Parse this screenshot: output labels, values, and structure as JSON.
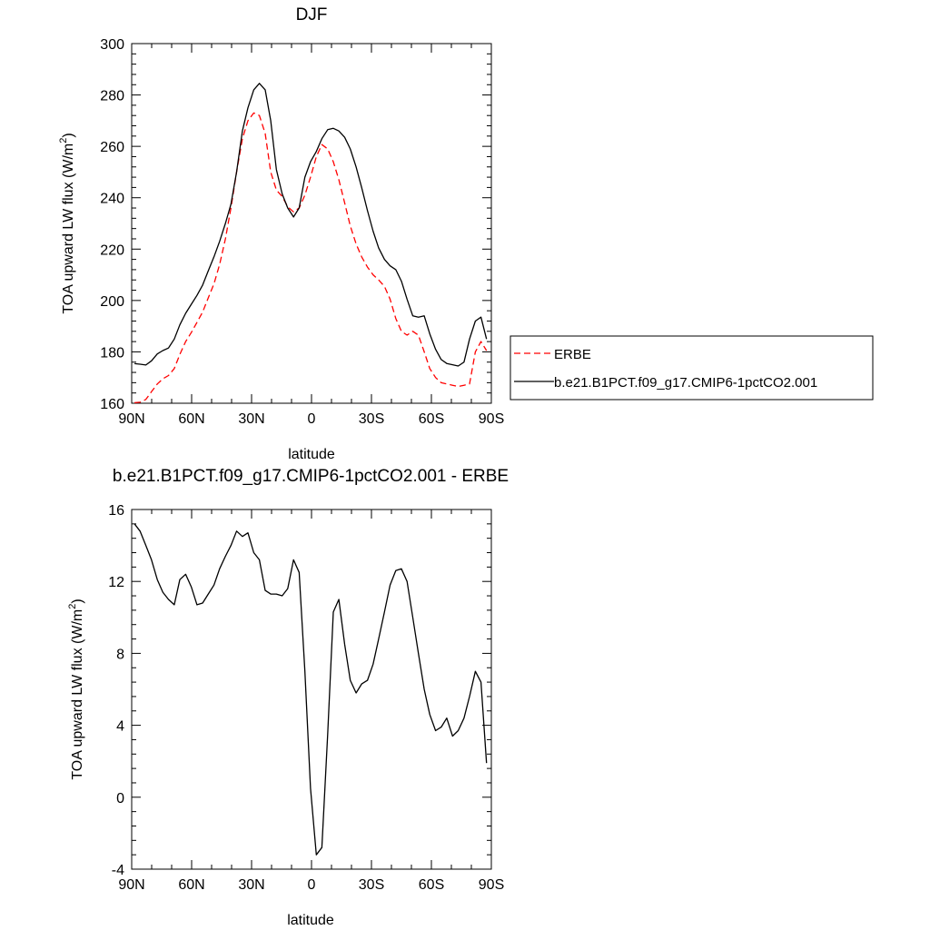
{
  "chart_data": [
    {
      "type": "line",
      "title": "DJF",
      "xlabel": "latitude",
      "ylabel": "TOA upward LW flux (W/m",
      "ylabel_sup": "2",
      "ylabel_end": ")",
      "xlim": [
        90,
        -90
      ],
      "ylim": [
        160,
        300
      ],
      "x_ticks": [
        90,
        60,
        30,
        0,
        -30,
        -60,
        -90
      ],
      "x_tick_labels": [
        "90N",
        "60N",
        "30N",
        "0",
        "30S",
        "60S",
        "90S"
      ],
      "y_ticks": [
        160,
        180,
        200,
        220,
        240,
        260,
        280,
        300
      ],
      "y_tick_labels": [
        "160",
        "180",
        "200",
        "220",
        "240",
        "260",
        "280",
        "300"
      ],
      "legend_position": "right",
      "series": [
        {
          "name": "ERBE",
          "color": "#ff0000",
          "dash": "dashed",
          "x": [
            88.6,
            85.8,
            82.9,
            80.1,
            77.2,
            74.4,
            71.6,
            68.7,
            65.9,
            63.0,
            60.2,
            57.3,
            54.5,
            51.7,
            48.8,
            46.0,
            43.1,
            40.3,
            37.5,
            34.6,
            31.8,
            28.9,
            26.1,
            23.2,
            20.4,
            17.6,
            14.7,
            11.9,
            9.0,
            6.2,
            3.3,
            0.5,
            -2.4,
            -5.2,
            -8.1,
            -10.9,
            -13.7,
            -16.6,
            -19.4,
            -22.3,
            -25.1,
            -28.0,
            -30.8,
            -33.6,
            -36.5,
            -39.3,
            -42.2,
            -45.0,
            -47.8,
            -50.7,
            -53.5,
            -56.4,
            -59.2,
            -62.1,
            -64.9,
            -67.7,
            -70.6,
            -73.4,
            -76.3,
            -79.1,
            -82.0,
            -84.8,
            -87.6
          ],
          "y": [
            160.2,
            160.4,
            161.5,
            164.5,
            167.5,
            169.5,
            170.8,
            173.5,
            179.0,
            184.0,
            187.5,
            191.5,
            195.5,
            201.0,
            206.5,
            214.0,
            224.0,
            236.0,
            250.0,
            263.0,
            270.0,
            273.0,
            272.0,
            265.0,
            250.0,
            243.0,
            240.5,
            236.5,
            234.5,
            236.0,
            241.0,
            248.0,
            256.0,
            260.7,
            259.0,
            254.0,
            247.0,
            238.0,
            229.0,
            222.0,
            217.0,
            213.0,
            210.0,
            208.0,
            205.5,
            200.5,
            193.0,
            188.0,
            186.5,
            188.0,
            186.5,
            180.0,
            173.5,
            170.0,
            168.0,
            167.5,
            167.0,
            166.5,
            167.0,
            167.5,
            180.0,
            184.0,
            180.5
          ]
        },
        {
          "name": "b.e21.B1PCT.f09_g17.CMIP6-1pctCO2.001",
          "color": "#000000",
          "dash": "solid",
          "x": [
            88.6,
            85.8,
            82.9,
            80.1,
            77.2,
            74.4,
            71.6,
            68.7,
            65.9,
            63.0,
            60.2,
            57.3,
            54.5,
            51.7,
            48.8,
            46.0,
            43.1,
            40.3,
            37.5,
            34.6,
            31.8,
            28.9,
            26.1,
            23.2,
            20.4,
            17.6,
            14.7,
            11.9,
            9.0,
            6.2,
            3.3,
            0.5,
            -2.4,
            -5.2,
            -8.1,
            -10.9,
            -13.7,
            -16.6,
            -19.4,
            -22.3,
            -25.1,
            -28.0,
            -30.8,
            -33.6,
            -36.5,
            -39.3,
            -42.2,
            -45.0,
            -47.8,
            -50.7,
            -53.5,
            -56.4,
            -59.2,
            -62.1,
            -64.9,
            -67.7,
            -70.6,
            -73.4,
            -76.3,
            -79.1,
            -82.0,
            -84.8,
            -87.6
          ],
          "y": [
            175.4,
            175.2,
            174.9,
            176.5,
            179.2,
            180.5,
            181.5,
            185.0,
            190.5,
            195.0,
            198.5,
            202.0,
            206.0,
            211.5,
            217.0,
            223.0,
            230.0,
            237.5,
            250.0,
            266.0,
            275.0,
            282.0,
            284.5,
            282.0,
            270.0,
            251.0,
            241.5,
            236.0,
            232.5,
            236.0,
            248.0,
            254.0,
            258.0,
            263.0,
            266.5,
            267.0,
            266.0,
            263.5,
            259.0,
            252.0,
            244.0,
            235.0,
            227.0,
            220.5,
            216.0,
            213.5,
            212.0,
            207.5,
            200.5,
            194.0,
            193.5,
            194.0,
            187.0,
            181.0,
            177.0,
            175.5,
            175.0,
            174.5,
            176.0,
            185.0,
            192.0,
            193.5,
            185.0
          ]
        }
      ]
    },
    {
      "type": "line",
      "title": "b.e21.B1PCT.f09_g17.CMIP6-1pctCO2.001 - ERBE",
      "xlabel": "latitude",
      "ylabel": "TOA upward LW flux (W/m",
      "ylabel_sup": "2",
      "ylabel_end": ")",
      "xlim": [
        90,
        -90
      ],
      "ylim": [
        -4,
        16
      ],
      "x_ticks": [
        90,
        60,
        30,
        0,
        -30,
        -60,
        -90
      ],
      "x_tick_labels": [
        "90N",
        "60N",
        "30N",
        "0",
        "30S",
        "60S",
        "90S"
      ],
      "y_ticks": [
        -4,
        0,
        4,
        8,
        12,
        16
      ],
      "y_tick_labels": [
        "-4",
        "0",
        "4",
        "8",
        "12",
        "16"
      ],
      "series": [
        {
          "name": "",
          "color": "#000000",
          "dash": "solid",
          "x": [
            88.6,
            85.8,
            82.9,
            80.1,
            77.2,
            74.4,
            71.6,
            68.7,
            65.9,
            63.0,
            60.2,
            57.3,
            54.5,
            51.7,
            48.8,
            46.0,
            43.1,
            40.3,
            37.5,
            34.6,
            31.8,
            28.9,
            26.1,
            23.2,
            20.4,
            17.6,
            14.7,
            11.9,
            9.0,
            6.2,
            3.3,
            0.5,
            -2.4,
            -5.2,
            -8.1,
            -10.9,
            -13.7,
            -16.6,
            -19.4,
            -22.3,
            -25.1,
            -28.0,
            -30.8,
            -33.6,
            -36.5,
            -39.3,
            -42.2,
            -45.0,
            -47.8,
            -50.7,
            -53.5,
            -56.4,
            -59.2,
            -62.1,
            -64.9,
            -67.7,
            -70.6,
            -73.4,
            -76.3,
            -79.1,
            -82.0,
            -84.8,
            -87.6
          ],
          "y": [
            15.2,
            14.8,
            14.0,
            13.2,
            12.1,
            11.4,
            11.0,
            10.7,
            12.1,
            12.4,
            11.7,
            10.7,
            10.8,
            11.3,
            11.8,
            12.7,
            13.4,
            14.0,
            14.8,
            14.5,
            14.7,
            13.6,
            13.2,
            11.5,
            11.3,
            11.3,
            11.2,
            11.6,
            13.2,
            12.5,
            7.0,
            0.5,
            -3.2,
            -2.8,
            3.5,
            10.3,
            11.0,
            8.5,
            6.5,
            5.8,
            6.3,
            6.5,
            7.4,
            8.8,
            10.3,
            11.8,
            12.6,
            12.7,
            12.0,
            10.0,
            8.0,
            6.0,
            4.6,
            3.7,
            3.9,
            4.4,
            3.4,
            3.7,
            4.4,
            5.6,
            7.0,
            6.4,
            1.9
          ]
        }
      ]
    }
  ]
}
